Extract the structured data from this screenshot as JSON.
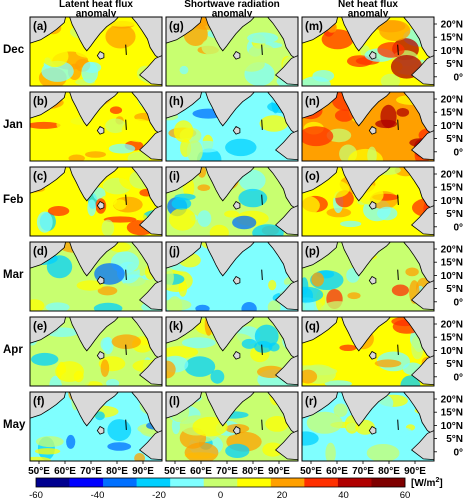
{
  "chart_data": {
    "type": "heatmap",
    "columns": [
      {
        "title": "Latent heat flux\nanomaly"
      },
      {
        "title": "Shortwave radiation\nanomaly"
      },
      {
        "title": "Net heat flux\nanomaly"
      }
    ],
    "rows": [
      "Dec",
      "Jan",
      "Feb",
      "Mar",
      "Apr",
      "May"
    ],
    "panel_labels": [
      [
        "(a)",
        "(g)",
        "(m)"
      ],
      [
        "(b)",
        "(h)",
        "(n)"
      ],
      [
        "(c)",
        "(i)",
        "(o)"
      ],
      [
        "(d)",
        "(j)",
        "(p)"
      ],
      [
        "(e)",
        "(k)",
        "(q)"
      ],
      [
        "(f)",
        "(l)",
        "(r)"
      ]
    ],
    "x_ticks": [
      "50°E",
      "60°E",
      "70°E",
      "80°E",
      "90°E"
    ],
    "y_ticks": [
      "20°N",
      "15°N",
      "10°N",
      "5°N",
      "0°"
    ],
    "colorbar": {
      "ticks": [
        "-60",
        "-40",
        "-20",
        "0",
        "20",
        "40",
        "60"
      ],
      "range": [
        -60,
        60
      ],
      "unit_prefix": "[W/m",
      "unit_sup": "2",
      "unit_suffix": "]",
      "colors": [
        "#00008f",
        "#0000ff",
        "#0070ff",
        "#00d0ff",
        "#7fffff",
        "#c8ff70",
        "#ffff00",
        "#ffa000",
        "#ff3000",
        "#b00000",
        "#7f0000"
      ]
    },
    "land_color": "#d9d9d9",
    "panel_means": [
      [
        8,
        0,
        12
      ],
      [
        10,
        -6,
        18
      ],
      [
        6,
        -4,
        10
      ],
      [
        -4,
        -8,
        2
      ],
      [
        -2,
        -4,
        10
      ],
      [
        -8,
        0,
        -6
      ]
    ]
  }
}
